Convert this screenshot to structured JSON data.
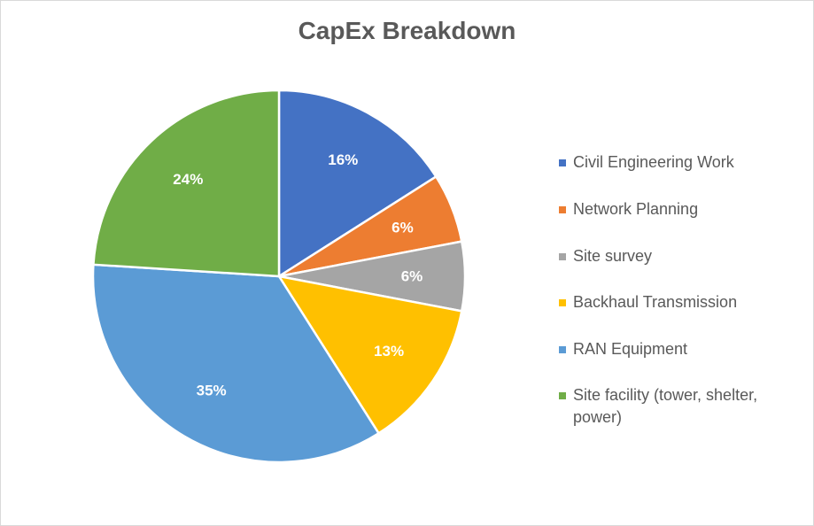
{
  "chart_data": {
    "type": "pie",
    "title": "CapEx Breakdown",
    "legend_position": "right",
    "slices": [
      {
        "label": "Civil Engineering Work",
        "value": 16,
        "value_label": "16%",
        "color": "#4472C4"
      },
      {
        "label": "Network Planning",
        "value": 6,
        "value_label": "6%",
        "color": "#ED7D31"
      },
      {
        "label": "Site survey",
        "value": 6,
        "value_label": "6%",
        "color": "#A5A5A5"
      },
      {
        "label": "Backhaul Transmission",
        "value": 13,
        "value_label": "13%",
        "color": "#FFC000"
      },
      {
        "label": "RAN Equipment",
        "value": 35,
        "value_label": "35%",
        "color": "#5B9BD5"
      },
      {
        "label": "Site facility (tower, shelter, power)",
        "value": 24,
        "value_label": "24%",
        "color": "#70AD47"
      }
    ]
  }
}
